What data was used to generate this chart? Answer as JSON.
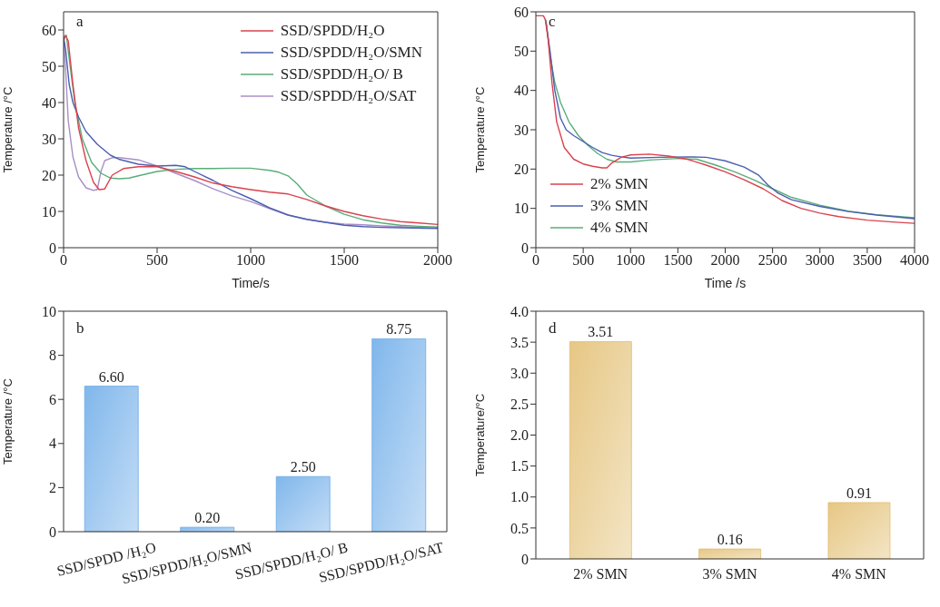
{
  "chart_data": [
    {
      "type": "line",
      "xlabel": "Time/s",
      "ylabel": "Temperature /°C",
      "annotations": [
        "a"
      ],
      "xlim": [
        0,
        2000
      ],
      "xticks": [
        0,
        500,
        1000,
        1500,
        2000
      ],
      "ylim": [
        0,
        65
      ],
      "yticks": [
        0,
        10,
        20,
        30,
        40,
        50,
        60
      ],
      "legend": "top right",
      "series": [
        {
          "name": "SSD/SPDD/H₂O",
          "color": "#d9434f",
          "x": [
            0,
            10,
            25,
            50,
            80,
            120,
            160,
            190,
            220,
            260,
            320,
            400,
            500,
            600,
            700,
            800,
            900,
            1000,
            1100,
            1200,
            1300,
            1400,
            1500,
            1600,
            1700,
            1800,
            1900,
            2000
          ],
          "values": [
            57,
            58.5,
            57,
            45,
            33,
            24,
            18,
            16,
            16.2,
            20,
            21.8,
            22.3,
            22.3,
            21,
            19.5,
            17.8,
            16.8,
            16,
            15.3,
            14.8,
            13.3,
            11.5,
            10,
            8.8,
            7.9,
            7.2,
            6.8,
            6.4
          ]
        },
        {
          "name": "SSD/SPDD/H₂O/SMN",
          "color": "#4a5fb0",
          "x": [
            0,
            10,
            30,
            50,
            80,
            120,
            180,
            250,
            300,
            400,
            500,
            600,
            650,
            700,
            800,
            900,
            1000,
            1100,
            1200,
            1300,
            1400,
            1500,
            1600,
            1700,
            1800,
            2000
          ],
          "values": [
            58,
            55,
            45,
            40,
            36,
            32,
            28.5,
            25.5,
            24.3,
            23,
            22.5,
            22.7,
            22.3,
            21,
            18.5,
            15.8,
            13.5,
            11,
            9,
            7.8,
            7,
            6.2,
            5.8,
            5.6,
            5.5,
            5.3
          ]
        },
        {
          "name": "SSD/SPDD/H₂O/ B",
          "color": "#5aad7a",
          "x": [
            0,
            15,
            30,
            60,
            100,
            150,
            200,
            250,
            300,
            350,
            400,
            500,
            600,
            700,
            800,
            900,
            1000,
            1100,
            1150,
            1200,
            1250,
            1300,
            1350,
            1400,
            1500,
            1600,
            1700,
            1800,
            1900,
            2000
          ],
          "values": [
            58,
            58.5,
            52,
            40,
            30,
            23.5,
            20.5,
            19.2,
            19,
            19.2,
            19.8,
            21,
            21.6,
            21.8,
            21.8,
            21.9,
            21.9,
            21.3,
            20.8,
            19.8,
            17.5,
            14.5,
            13,
            11.5,
            9.2,
            7.7,
            6.8,
            6.2,
            5.9,
            5.7
          ]
        },
        {
          "name": "SSD/SPDD/H₂O/SAT",
          "color": "#a88fc8",
          "x": [
            0,
            10,
            25,
            50,
            80,
            120,
            160,
            180,
            200,
            220,
            260,
            300,
            400,
            500,
            600,
            700,
            800,
            900,
            1000,
            1100,
            1200,
            1300,
            1400,
            1500,
            1600,
            1700,
            1800,
            2000
          ],
          "values": [
            58,
            50,
            35,
            25,
            19.5,
            16.5,
            15.8,
            16,
            21,
            24,
            24.8,
            24.8,
            24.2,
            22.5,
            20.5,
            18.5,
            16.2,
            14.3,
            12.7,
            10.8,
            9,
            7.8,
            7,
            6.5,
            6.3,
            6,
            5.8,
            5.4
          ]
        }
      ]
    },
    {
      "type": "line",
      "xlabel": "Time /s",
      "ylabel": "Temperature /°C",
      "annotations": [
        "c"
      ],
      "xlim": [
        0,
        4000
      ],
      "xticks": [
        0,
        500,
        1000,
        1500,
        2000,
        2500,
        3000,
        3500,
        4000
      ],
      "ylim": [
        0,
        60
      ],
      "yticks": [
        0,
        10,
        20,
        30,
        40,
        50,
        60
      ],
      "legend": "bottom left",
      "series": [
        {
          "name": "2% SMN",
          "color": "#d9434f",
          "x": [
            0,
            80,
            100,
            130,
            170,
            220,
            300,
            400,
            500,
            600,
            700,
            750,
            800,
            900,
            1000,
            1200,
            1400,
            1600,
            1800,
            2000,
            2200,
            2400,
            2500,
            2600,
            2800,
            3000,
            3200,
            3500,
            3800,
            4000
          ],
          "values": [
            59,
            59,
            58,
            53,
            42,
            32,
            25.5,
            22.5,
            21.3,
            20.7,
            20.3,
            20.3,
            21.5,
            23,
            23.6,
            23.8,
            23.3,
            22.5,
            21,
            19.3,
            17.3,
            15,
            13.5,
            12,
            10,
            8.8,
            7.9,
            7,
            6.5,
            6.2
          ]
        },
        {
          "name": "3% SMN",
          "color": "#4a5fb0",
          "x": [
            100,
            110,
            150,
            200,
            260,
            320,
            400,
            500,
            600,
            700,
            800,
            900,
            1000,
            1300,
            1600,
            1800,
            2000,
            2200,
            2350,
            2450,
            2550,
            2700,
            3000,
            3300,
            3600,
            4000
          ],
          "values": [
            58,
            57,
            50,
            40,
            33,
            30,
            28.5,
            27,
            25.5,
            24.2,
            23.5,
            23.1,
            22.8,
            23,
            23.1,
            23,
            22.1,
            20.5,
            18.5,
            16,
            14,
            12.2,
            10.5,
            9.2,
            8.3,
            7.4
          ]
        },
        {
          "name": "4% SMN",
          "color": "#5aad7a",
          "x": [
            100,
            110,
            150,
            200,
            260,
            350,
            450,
            550,
            650,
            750,
            850,
            1000,
            1200,
            1500,
            1700,
            1900,
            2100,
            2300,
            2500,
            2700,
            3000,
            3300,
            3600,
            4000
          ],
          "values": [
            58,
            57,
            49,
            42,
            37,
            32,
            28.5,
            26,
            24,
            22.5,
            21.8,
            21.8,
            22.3,
            22.7,
            22.5,
            21,
            19.3,
            17.3,
            15,
            12.8,
            10.8,
            9.3,
            8.4,
            7.6
          ]
        }
      ]
    },
    {
      "type": "bar",
      "ylabel": "Temperature /°C",
      "annotations": [
        "b"
      ],
      "categories": [
        "SSD/SPDD /H₂O",
        "SSD/SPDD/H₂O/SMN",
        "SSD/SPDD/H₂O/ B",
        "SSD/SPDD/H₂O/SAT"
      ],
      "values": [
        6.6,
        0.2,
        2.5,
        8.75
      ],
      "value_labels": [
        "6.60",
        "0.20",
        "2.50",
        "8.75"
      ],
      "color": "#6aaae8",
      "ylim": [
        0,
        10
      ],
      "yticks": [
        0,
        2,
        4,
        6,
        8,
        10
      ]
    },
    {
      "type": "bar",
      "ylabel": "Temperature/°C",
      "annotations": [
        "d"
      ],
      "categories": [
        "2% SMN",
        "3% SMN",
        "4% SMN"
      ],
      "values": [
        3.51,
        0.16,
        0.91
      ],
      "value_labels": [
        "3.51",
        "0.16",
        "0.91"
      ],
      "color": "#e2bd6e",
      "ylim": [
        0,
        4
      ],
      "yticks": [
        0,
        {
          "value": 0.5,
          "label": "0.5"
        },
        {
          "value": 1,
          "label": "1.0"
        },
        {
          "value": 1.5,
          "label": "1.5"
        },
        {
          "value": 2,
          "label": "2.0"
        },
        {
          "value": 2.5,
          "label": "2.5"
        },
        {
          "value": 3,
          "label": "3.0"
        },
        {
          "value": 3.5,
          "label": "3.5"
        },
        {
          "value": 4,
          "label": "4.0"
        }
      ]
    }
  ]
}
